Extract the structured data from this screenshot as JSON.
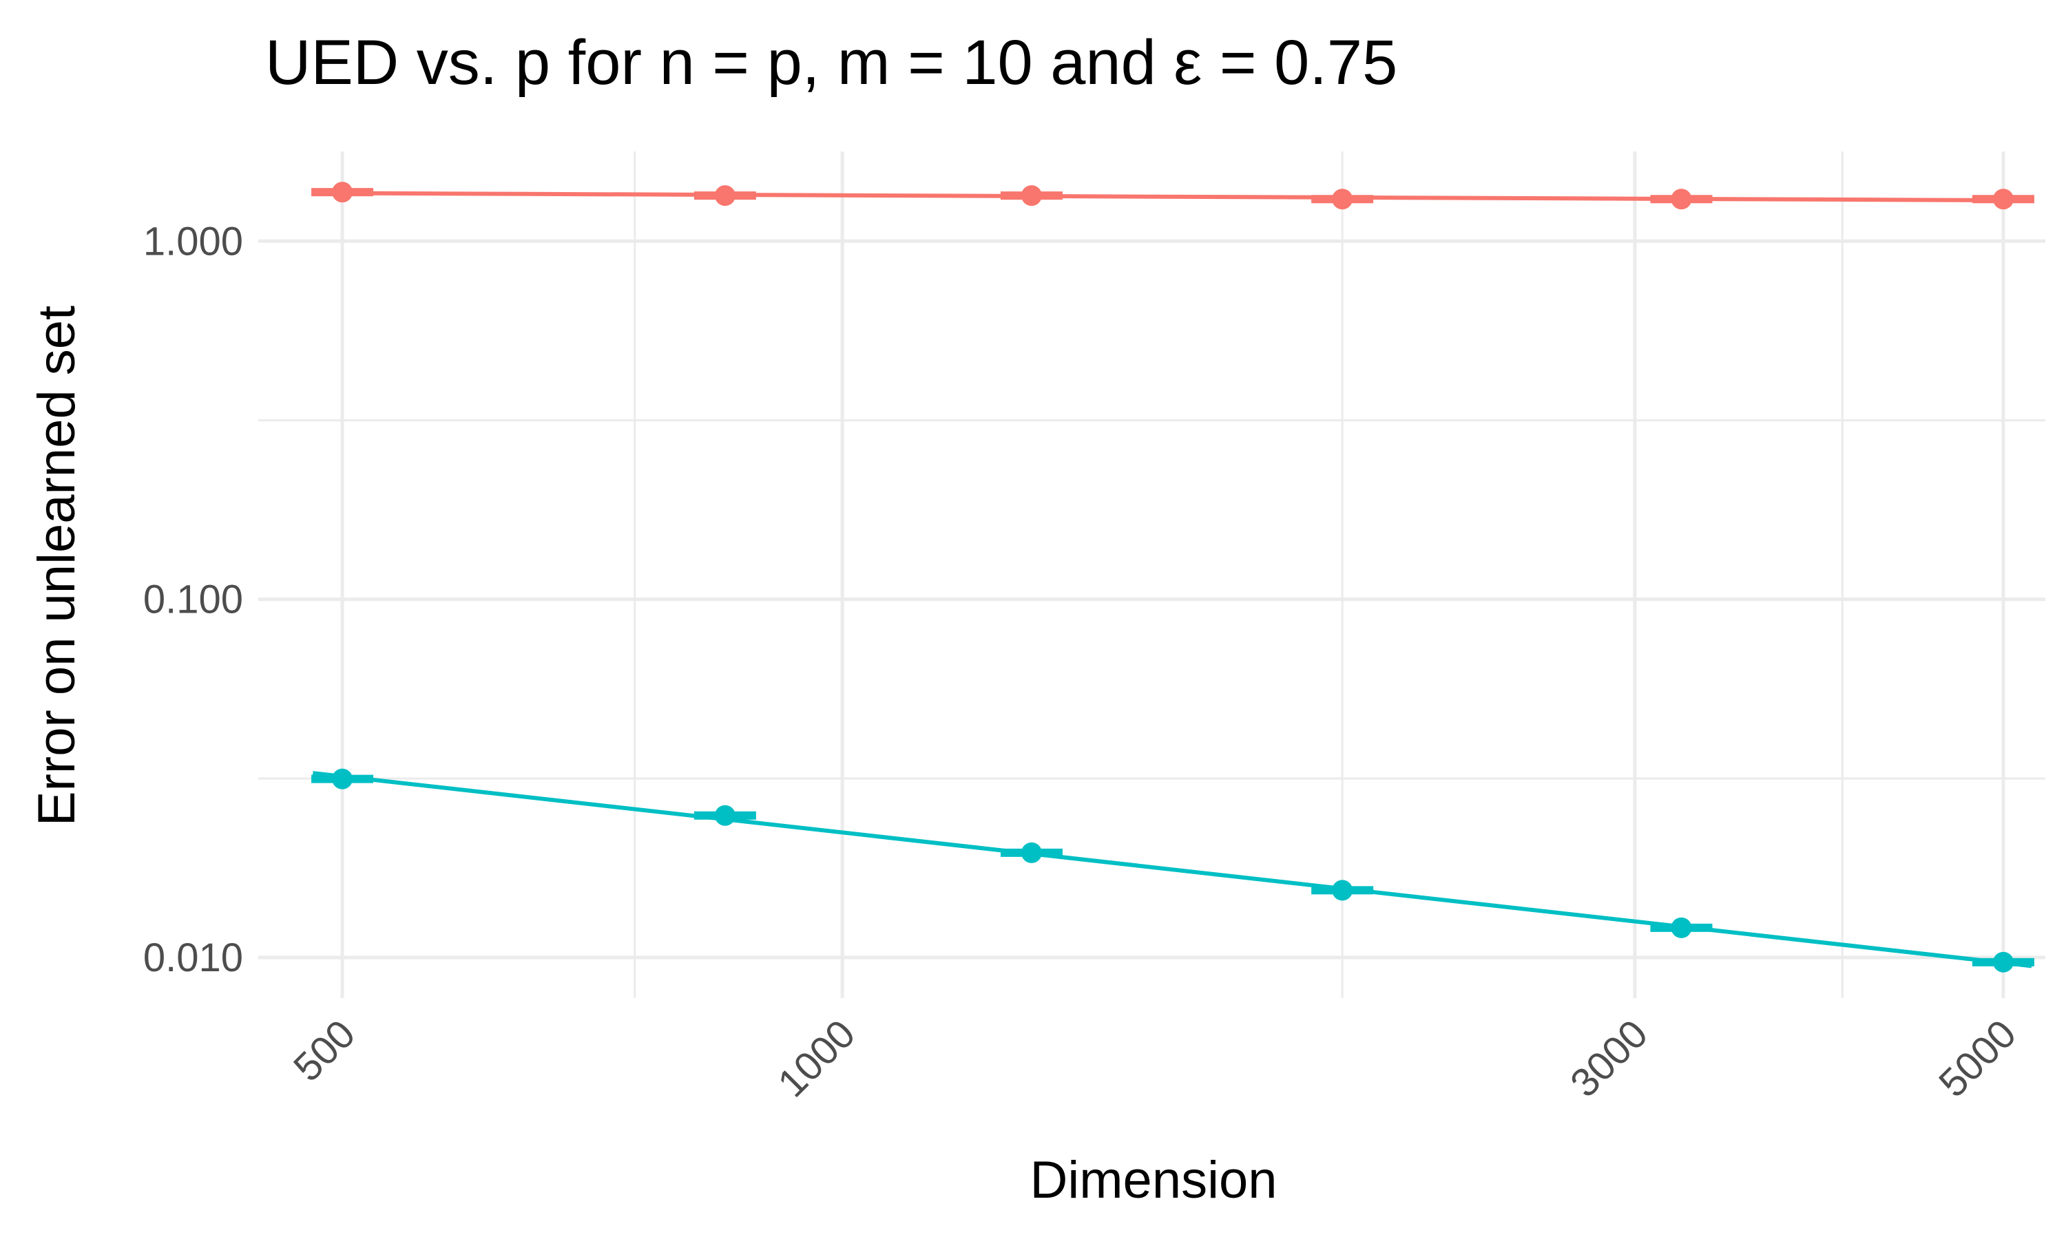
{
  "chart_data": {
    "type": "line",
    "title": "UED vs. p for n = p, m = 10 and  ε =  0.75",
    "xlabel": "Dimension",
    "ylabel": "Error on unlearned set",
    "x_scale": "log",
    "y_scale": "log",
    "xlim": [
      445,
      5300
    ],
    "ylim": [
      0.0077,
      1.78
    ],
    "x_ticks": [
      500,
      1000,
      3000,
      5000
    ],
    "x_tick_labels": [
      "500",
      "1000",
      "3000",
      "5000"
    ],
    "x_minor_ticks": [
      750,
      2000,
      4000
    ],
    "y_ticks": [
      0.01,
      0.1,
      1.0
    ],
    "y_tick_labels": [
      "0.010",
      "0.100",
      "1.000"
    ],
    "y_minor_ticks": [
      0.0316,
      0.316
    ],
    "grid": true,
    "legend": "none",
    "x": [
      500,
      850,
      1300,
      2000,
      3200,
      5000
    ],
    "series": [
      {
        "color": "#F8766D",
        "values": [
          1.37,
          1.34,
          1.34,
          1.31,
          1.31,
          1.31
        ]
      },
      {
        "color": "#00BFC4",
        "values": [
          0.0315,
          0.0249,
          0.0196,
          0.0154,
          0.0121,
          0.0097
        ]
      }
    ]
  }
}
